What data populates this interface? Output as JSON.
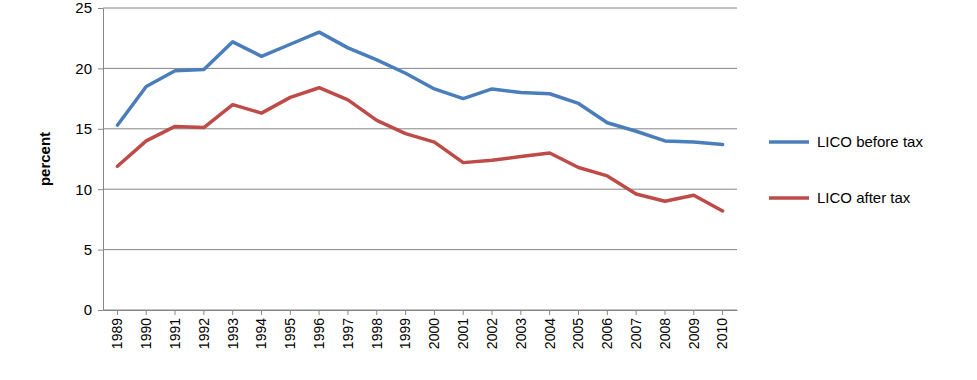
{
  "chart_data": {
    "type": "line",
    "y_label": "percent",
    "categories": [
      "1989",
      "1990",
      "1991",
      "1992",
      "1993",
      "1994",
      "1995",
      "1996",
      "1997",
      "1998",
      "1999",
      "2000",
      "2001",
      "2002",
      "2003",
      "2004",
      "2005",
      "2006",
      "2007",
      "2008",
      "2009",
      "2010"
    ],
    "series": [
      {
        "name": "LICO before tax",
        "color": "#4a7ebb",
        "values": [
          15.3,
          18.5,
          19.8,
          19.9,
          22.2,
          21.0,
          22.0,
          23.0,
          21.7,
          20.7,
          19.6,
          18.3,
          17.5,
          18.3,
          18.0,
          17.9,
          17.1,
          15.5,
          14.8,
          14.0,
          13.9,
          13.7
        ]
      },
      {
        "name": "LICO after tax",
        "color": "#be4b48",
        "values": [
          11.9,
          14.0,
          15.2,
          15.1,
          17.0,
          16.3,
          17.6,
          18.4,
          17.4,
          15.7,
          14.6,
          13.9,
          12.2,
          12.4,
          12.7,
          13.0,
          11.8,
          11.1,
          9.6,
          9.0,
          9.5,
          8.2
        ]
      }
    ],
    "ylim": [
      0,
      25
    ],
    "yticks": [
      0,
      5,
      10,
      15,
      20,
      25
    ],
    "grid": true,
    "legend": "right"
  }
}
